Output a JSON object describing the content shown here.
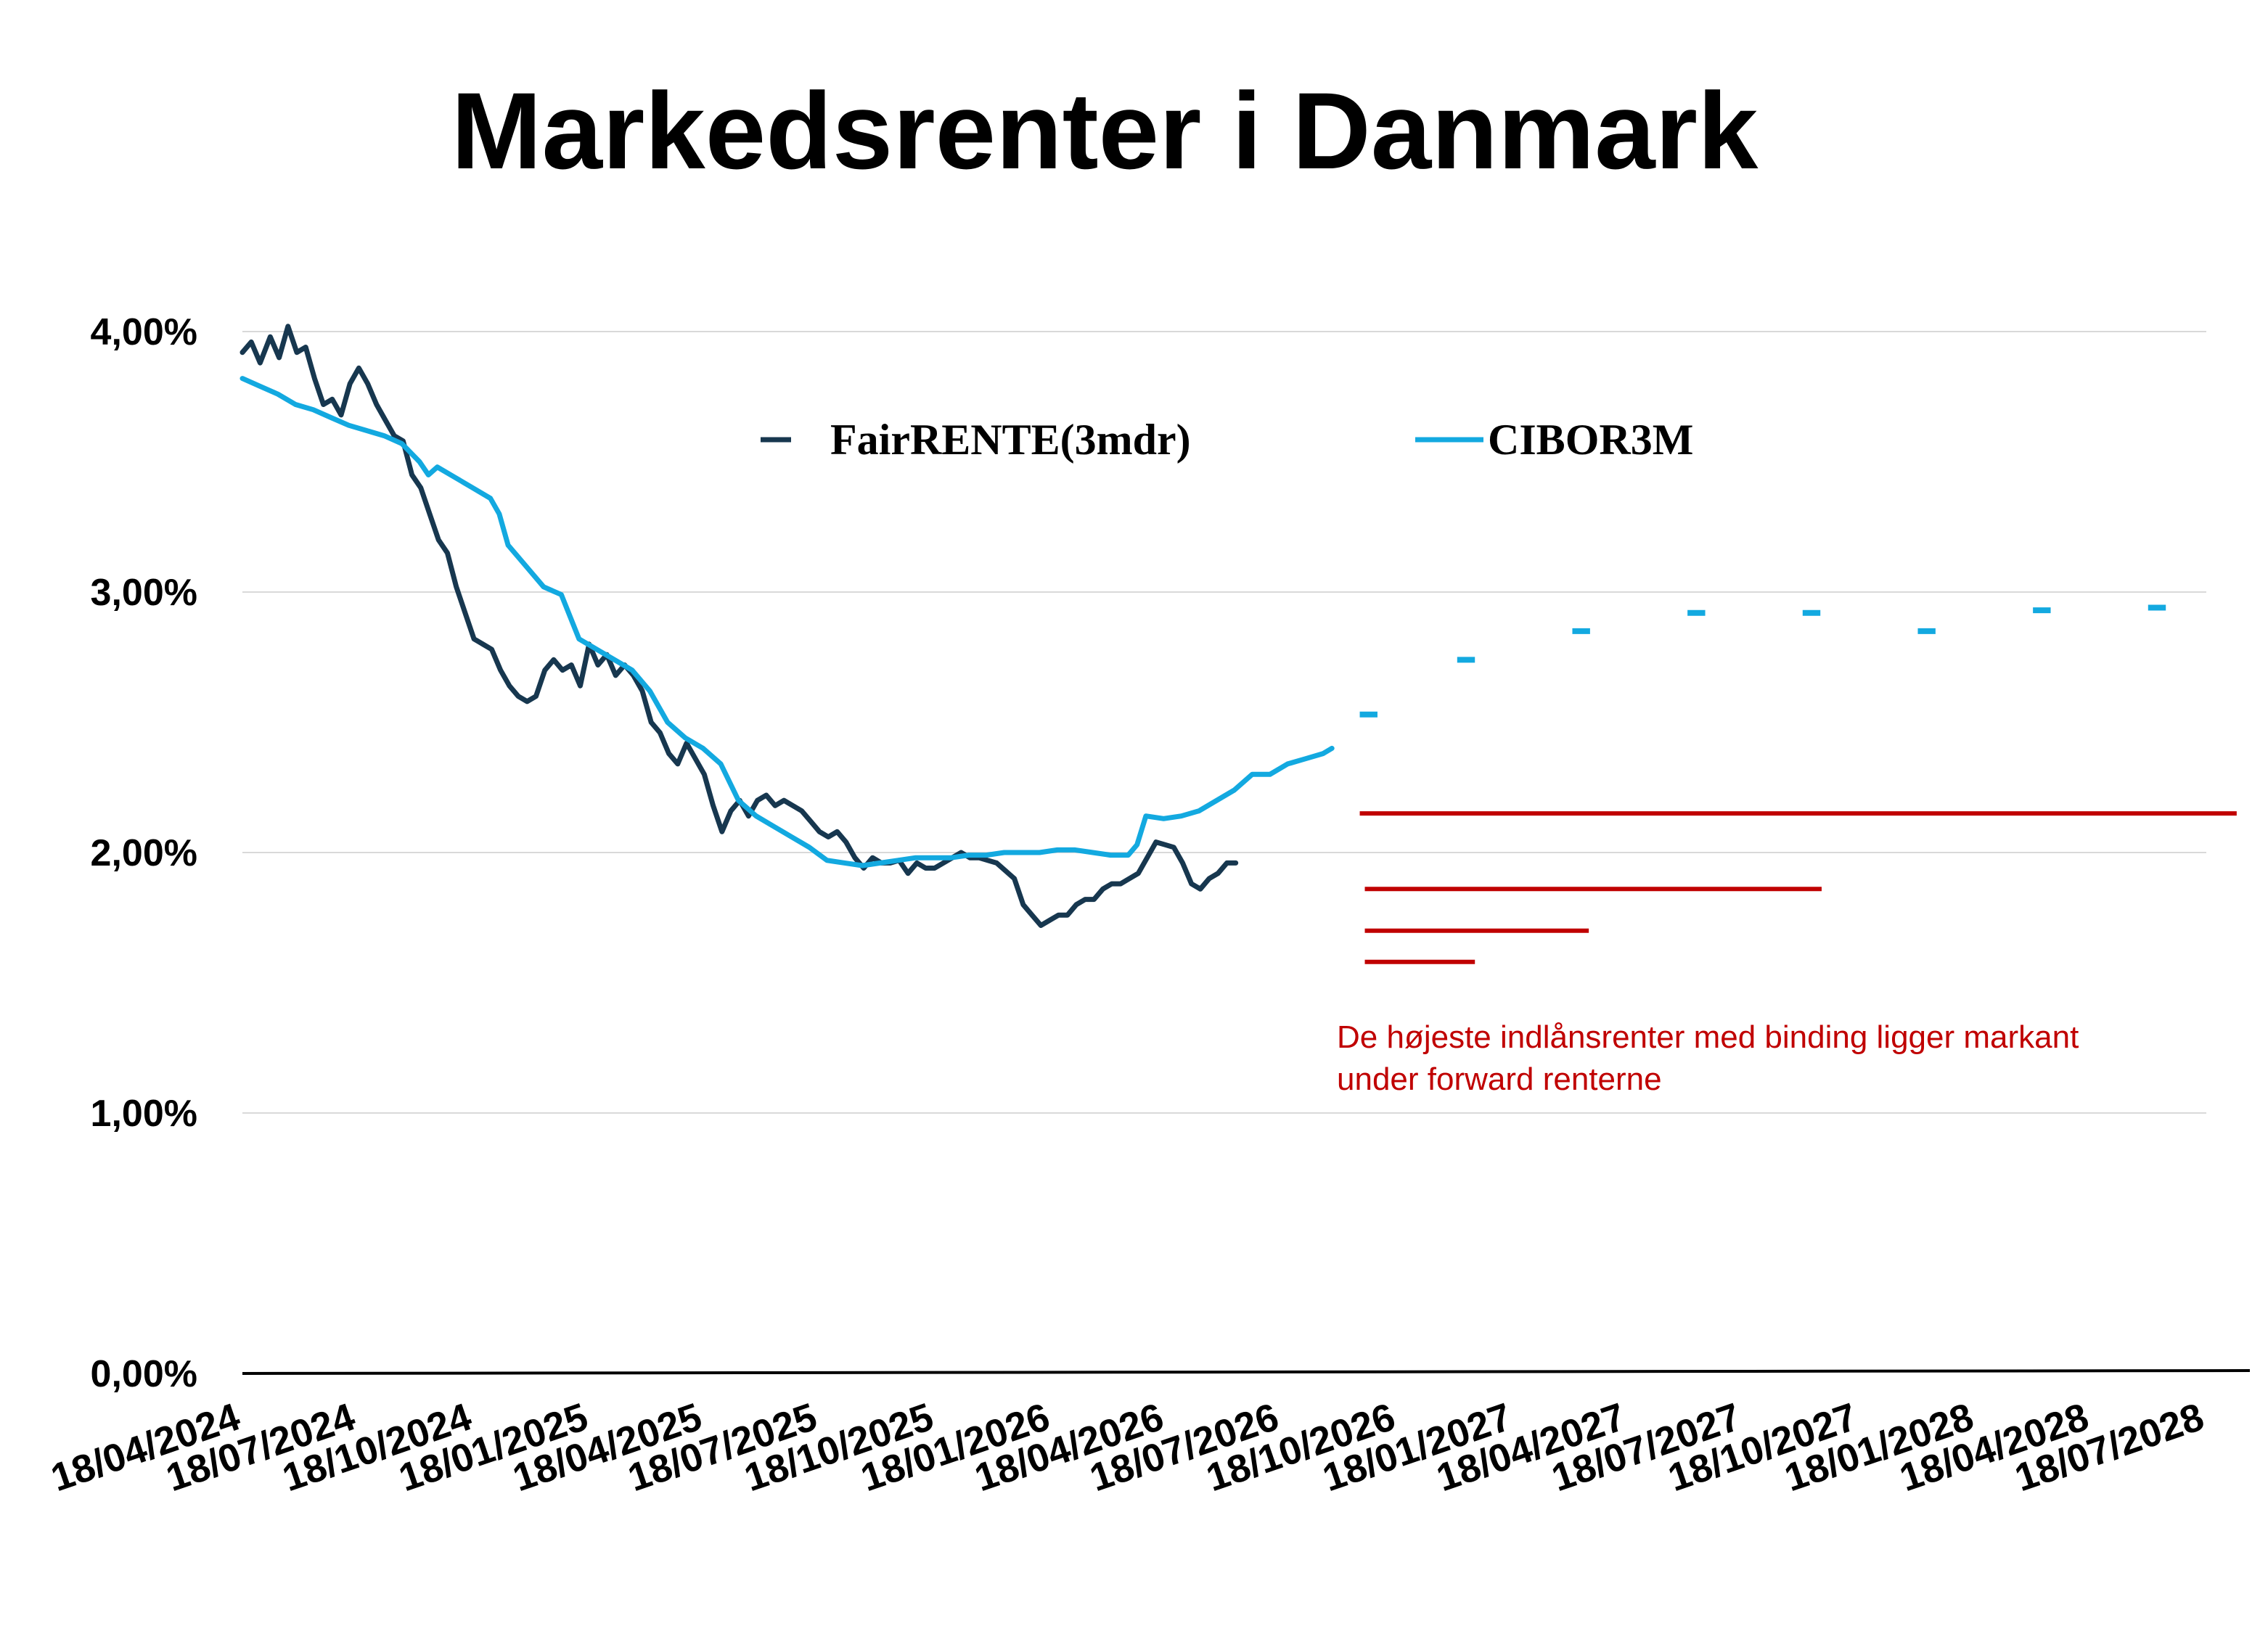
{
  "chart_data": {
    "type": "line",
    "title": "Markedsrenter i Danmark",
    "xlabel": "",
    "ylabel": "",
    "ylim": [
      0,
      4.2
    ],
    "x_range": [
      "2024-04-18",
      "2028-08-18"
    ],
    "y_ticks": [
      {
        "value": 0,
        "label": "0,00%"
      },
      {
        "value": 1,
        "label": "1,00%"
      },
      {
        "value": 2,
        "label": "2,00%"
      },
      {
        "value": 3,
        "label": "3,00%"
      },
      {
        "value": 4,
        "label": "4,00%"
      }
    ],
    "x_ticks": [
      {
        "date": "2024-04-18",
        "label": "18/04/2024"
      },
      {
        "date": "2024-07-18",
        "label": "18/07/2024"
      },
      {
        "date": "2024-10-18",
        "label": "18/10/2024"
      },
      {
        "date": "2025-01-18",
        "label": "18/01/2025"
      },
      {
        "date": "2025-04-18",
        "label": "18/04/2025"
      },
      {
        "date": "2025-07-18",
        "label": "18/07/2025"
      },
      {
        "date": "2025-10-18",
        "label": "18/10/2025"
      },
      {
        "date": "2026-01-18",
        "label": "18/01/2026"
      },
      {
        "date": "2026-04-18",
        "label": "18/04/2026"
      },
      {
        "date": "2026-07-18",
        "label": "18/07/2026"
      },
      {
        "date": "2026-10-18",
        "label": "18/10/2026"
      },
      {
        "date": "2027-01-18",
        "label": "18/01/2027"
      },
      {
        "date": "2027-04-18",
        "label": "18/04/2027"
      },
      {
        "date": "2027-07-18",
        "label": "18/07/2027"
      },
      {
        "date": "2027-10-18",
        "label": "18/10/2027"
      },
      {
        "date": "2028-01-18",
        "label": "18/01/2028"
      },
      {
        "date": "2028-04-18",
        "label": "18/04/2028"
      },
      {
        "date": "2028-07-18",
        "label": "18/07/2028"
      }
    ],
    "grid": true,
    "legend_position": "top-center",
    "series": [
      {
        "name": "FairRENTE(3mdr)",
        "color": "#17374f",
        "points": [
          [
            "2024-04-18",
            3.92
          ],
          [
            "2024-04-25",
            3.96
          ],
          [
            "2024-05-02",
            3.88
          ],
          [
            "2024-05-10",
            3.98
          ],
          [
            "2024-05-17",
            3.9
          ],
          [
            "2024-05-24",
            4.02
          ],
          [
            "2024-05-31",
            3.92
          ],
          [
            "2024-06-07",
            3.94
          ],
          [
            "2024-06-14",
            3.82
          ],
          [
            "2024-06-21",
            3.72
          ],
          [
            "2024-06-28",
            3.74
          ],
          [
            "2024-07-05",
            3.68
          ],
          [
            "2024-07-12",
            3.8
          ],
          [
            "2024-07-19",
            3.86
          ],
          [
            "2024-07-26",
            3.8
          ],
          [
            "2024-08-02",
            3.72
          ],
          [
            "2024-08-09",
            3.66
          ],
          [
            "2024-08-16",
            3.6
          ],
          [
            "2024-08-23",
            3.58
          ],
          [
            "2024-08-30",
            3.45
          ],
          [
            "2024-09-06",
            3.4
          ],
          [
            "2024-09-13",
            3.3
          ],
          [
            "2024-09-20",
            3.2
          ],
          [
            "2024-09-27",
            3.15
          ],
          [
            "2024-10-04",
            3.02
          ],
          [
            "2024-10-11",
            2.92
          ],
          [
            "2024-10-18",
            2.82
          ],
          [
            "2024-10-25",
            2.8
          ],
          [
            "2024-11-01",
            2.78
          ],
          [
            "2024-11-08",
            2.7
          ],
          [
            "2024-11-15",
            2.64
          ],
          [
            "2024-11-22",
            2.6
          ],
          [
            "2024-11-29",
            2.58
          ],
          [
            "2024-12-06",
            2.6
          ],
          [
            "2024-12-13",
            2.7
          ],
          [
            "2024-12-20",
            2.74
          ],
          [
            "2024-12-27",
            2.7
          ],
          [
            "2025-01-03",
            2.72
          ],
          [
            "2025-01-10",
            2.64
          ],
          [
            "2025-01-17",
            2.8
          ],
          [
            "2025-01-24",
            2.72
          ],
          [
            "2025-01-31",
            2.76
          ],
          [
            "2025-02-07",
            2.68
          ],
          [
            "2025-02-14",
            2.72
          ],
          [
            "2025-02-21",
            2.68
          ],
          [
            "2025-02-28",
            2.62
          ],
          [
            "2025-03-07",
            2.5
          ],
          [
            "2025-03-14",
            2.46
          ],
          [
            "2025-03-21",
            2.38
          ],
          [
            "2025-03-28",
            2.34
          ],
          [
            "2025-04-04",
            2.42
          ],
          [
            "2025-04-11",
            2.36
          ],
          [
            "2025-04-18",
            2.3
          ],
          [
            "2025-04-25",
            2.18
          ],
          [
            "2025-05-02",
            2.08
          ],
          [
            "2025-05-09",
            2.16
          ],
          [
            "2025-05-16",
            2.2
          ],
          [
            "2025-05-23",
            2.14
          ],
          [
            "2025-05-30",
            2.2
          ],
          [
            "2025-06-06",
            2.22
          ],
          [
            "2025-06-13",
            2.18
          ],
          [
            "2025-06-20",
            2.2
          ],
          [
            "2025-06-27",
            2.18
          ],
          [
            "2025-07-04",
            2.16
          ],
          [
            "2025-07-11",
            2.12
          ],
          [
            "2025-07-18",
            2.08
          ],
          [
            "2025-07-25",
            2.06
          ],
          [
            "2025-08-01",
            2.08
          ],
          [
            "2025-08-08",
            2.04
          ],
          [
            "2025-08-15",
            1.98
          ],
          [
            "2025-08-22",
            1.94
          ],
          [
            "2025-08-29",
            1.98
          ],
          [
            "2025-09-05",
            1.96
          ],
          [
            "2025-09-12",
            1.96
          ],
          [
            "2025-09-19",
            1.97
          ],
          [
            "2025-09-26",
            1.92
          ],
          [
            "2025-10-03",
            1.96
          ],
          [
            "2025-10-10",
            1.94
          ],
          [
            "2025-10-17",
            1.94
          ],
          [
            "2025-10-24",
            1.96
          ],
          [
            "2025-10-31",
            1.98
          ],
          [
            "2025-11-07",
            2.0
          ],
          [
            "2025-11-14",
            1.98
          ],
          [
            "2025-11-21",
            1.98
          ],
          [
            "2025-11-28",
            1.97
          ],
          [
            "2025-12-05",
            1.96
          ],
          [
            "2025-12-12",
            1.93
          ],
          [
            "2025-12-19",
            1.9
          ],
          [
            "2025-12-26",
            1.8
          ],
          [
            "2026-01-02",
            1.76
          ],
          [
            "2026-01-09",
            1.72
          ],
          [
            "2026-01-16",
            1.74
          ],
          [
            "2026-01-23",
            1.76
          ],
          [
            "2026-01-30",
            1.76
          ],
          [
            "2026-02-06",
            1.8
          ],
          [
            "2026-02-13",
            1.82
          ],
          [
            "2026-02-20",
            1.82
          ],
          [
            "2026-02-27",
            1.86
          ],
          [
            "2026-03-06",
            1.88
          ],
          [
            "2026-03-13",
            1.88
          ],
          [
            "2026-03-20",
            1.9
          ],
          [
            "2026-03-27",
            1.92
          ],
          [
            "2026-04-03",
            1.98
          ],
          [
            "2026-04-10",
            2.04
          ],
          [
            "2026-04-17",
            2.03
          ],
          [
            "2026-04-24",
            2.02
          ],
          [
            "2026-05-01",
            1.96
          ],
          [
            "2026-05-08",
            1.88
          ],
          [
            "2026-05-15",
            1.86
          ],
          [
            "2026-05-22",
            1.9
          ],
          [
            "2026-05-29",
            1.92
          ],
          [
            "2026-06-05",
            1.96
          ],
          [
            "2026-06-12",
            1.96
          ]
        ]
      },
      {
        "name": "CIBOR3M",
        "color": "#13a9e0",
        "points": [
          [
            "2024-04-18",
            3.82
          ],
          [
            "2024-05-02",
            3.79
          ],
          [
            "2024-05-16",
            3.76
          ],
          [
            "2024-05-30",
            3.72
          ],
          [
            "2024-06-13",
            3.7
          ],
          [
            "2024-06-27",
            3.67
          ],
          [
            "2024-07-11",
            3.64
          ],
          [
            "2024-07-25",
            3.62
          ],
          [
            "2024-08-08",
            3.6
          ],
          [
            "2024-08-22",
            3.57
          ],
          [
            "2024-09-05",
            3.5
          ],
          [
            "2024-09-12",
            3.45
          ],
          [
            "2024-09-19",
            3.48
          ],
          [
            "2024-10-03",
            3.44
          ],
          [
            "2024-10-17",
            3.4
          ],
          [
            "2024-10-31",
            3.36
          ],
          [
            "2024-11-07",
            3.3
          ],
          [
            "2024-11-14",
            3.18
          ],
          [
            "2024-11-28",
            3.1
          ],
          [
            "2024-12-12",
            3.02
          ],
          [
            "2024-12-26",
            2.99
          ],
          [
            "2025-01-09",
            2.82
          ],
          [
            "2025-01-23",
            2.78
          ],
          [
            "2025-02-06",
            2.74
          ],
          [
            "2025-02-20",
            2.7
          ],
          [
            "2025-03-06",
            2.62
          ],
          [
            "2025-03-20",
            2.5
          ],
          [
            "2025-04-03",
            2.44
          ],
          [
            "2025-04-17",
            2.4
          ],
          [
            "2025-05-01",
            2.34
          ],
          [
            "2025-05-15",
            2.2
          ],
          [
            "2025-05-29",
            2.14
          ],
          [
            "2025-06-12",
            2.1
          ],
          [
            "2025-06-26",
            2.06
          ],
          [
            "2025-07-10",
            2.02
          ],
          [
            "2025-07-24",
            1.97
          ],
          [
            "2025-08-07",
            1.96
          ],
          [
            "2025-08-21",
            1.95
          ],
          [
            "2025-09-04",
            1.96
          ],
          [
            "2025-09-18",
            1.97
          ],
          [
            "2025-10-02",
            1.98
          ],
          [
            "2025-10-16",
            1.98
          ],
          [
            "2025-10-30",
            1.98
          ],
          [
            "2025-11-13",
            1.99
          ],
          [
            "2025-11-27",
            1.99
          ],
          [
            "2025-12-11",
            2.0
          ],
          [
            "2025-12-25",
            2.0
          ],
          [
            "2026-01-08",
            2.0
          ],
          [
            "2026-01-22",
            2.01
          ],
          [
            "2026-02-05",
            2.01
          ],
          [
            "2026-02-19",
            2.0
          ],
          [
            "2026-03-05",
            1.99
          ],
          [
            "2026-03-19",
            1.99
          ],
          [
            "2026-03-26",
            2.03
          ],
          [
            "2026-04-02",
            2.14
          ],
          [
            "2026-04-16",
            2.13
          ],
          [
            "2026-04-30",
            2.14
          ],
          [
            "2026-05-14",
            2.16
          ],
          [
            "2026-05-28",
            2.2
          ],
          [
            "2026-06-11",
            2.24
          ],
          [
            "2026-06-25",
            2.3
          ],
          [
            "2026-07-09",
            2.3
          ],
          [
            "2026-07-23",
            2.34
          ],
          [
            "2026-08-06",
            2.36
          ],
          [
            "2026-08-20",
            2.38
          ],
          [
            "2026-08-27",
            2.4
          ]
        ]
      }
    ],
    "forward_segments": {
      "color": "#13a9e0",
      "segments": [
        {
          "start": "2026-09-18",
          "end": "2026-10-02",
          "value": 2.53
        },
        {
          "start": "2026-12-04",
          "end": "2026-12-18",
          "value": 2.74
        },
        {
          "start": "2027-03-05",
          "end": "2027-03-19",
          "value": 2.85
        },
        {
          "start": "2027-06-04",
          "end": "2027-06-18",
          "value": 2.92
        },
        {
          "start": "2027-09-03",
          "end": "2027-09-17",
          "value": 2.92
        },
        {
          "start": "2027-12-03",
          "end": "2027-12-17",
          "value": 2.85
        },
        {
          "start": "2028-03-03",
          "end": "2028-03-17",
          "value": 2.93
        },
        {
          "start": "2028-06-02",
          "end": "2028-06-16",
          "value": 2.94
        }
      ]
    },
    "deposit_rate_lines": {
      "color": "#c00000",
      "segments": [
        {
          "start": "2026-09-18",
          "end": "2028-08-11",
          "value": 2.15
        },
        {
          "start": "2026-09-22",
          "end": "2027-09-18",
          "value": 1.86
        },
        {
          "start": "2026-09-22",
          "end": "2027-03-18",
          "value": 1.7
        },
        {
          "start": "2026-09-22",
          "end": "2026-12-18",
          "value": 1.58
        }
      ]
    },
    "annotation": {
      "lines": [
        "De højeste indlånsrenter med binding ligger markant",
        "under forward renterne"
      ],
      "color": "#c00000"
    }
  }
}
